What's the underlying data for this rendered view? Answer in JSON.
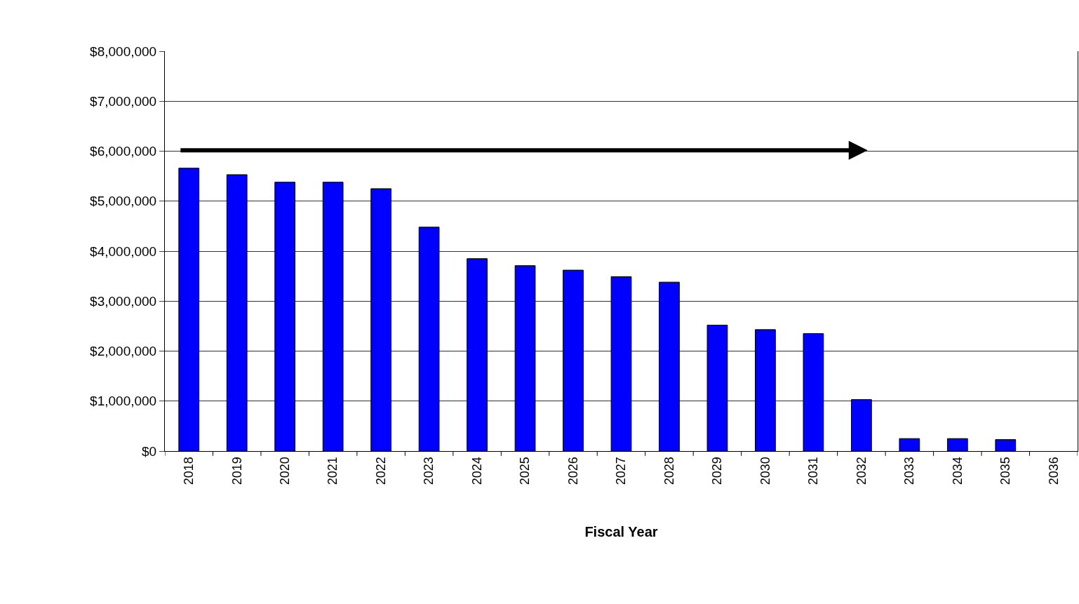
{
  "chart_data": {
    "type": "bar",
    "xlabel": "Fiscal Year",
    "categories": [
      "2018",
      "2019",
      "2020",
      "2021",
      "2022",
      "2023",
      "2024",
      "2025",
      "2026",
      "2027",
      "2028",
      "2029",
      "2030",
      "2031",
      "2032",
      "2033",
      "2034",
      "2035",
      "2036"
    ],
    "values": [
      5660000,
      5530000,
      5380000,
      5380000,
      5250000,
      4480000,
      3850000,
      3710000,
      3620000,
      3490000,
      3380000,
      2520000,
      2430000,
      2350000,
      1030000,
      250000,
      250000,
      230000,
      null
    ],
    "color": "#0000ff",
    "ylim": [
      0,
      8000000
    ],
    "yticks": [
      {
        "value": 0,
        "label": "$0"
      },
      {
        "value": 1000000,
        "label": "$1,000,000"
      },
      {
        "value": 2000000,
        "label": "$2,000,000"
      },
      {
        "value": 3000000,
        "label": "$3,000,000"
      },
      {
        "value": 4000000,
        "label": "$4,000,000"
      },
      {
        "value": 5000000,
        "label": "$5,000,000"
      },
      {
        "value": 6000000,
        "label": "$6,000,000"
      },
      {
        "value": 7000000,
        "label": "$7,000,000"
      },
      {
        "value": 8000000,
        "label": "$8,000,000"
      }
    ],
    "grid": "y"
  }
}
